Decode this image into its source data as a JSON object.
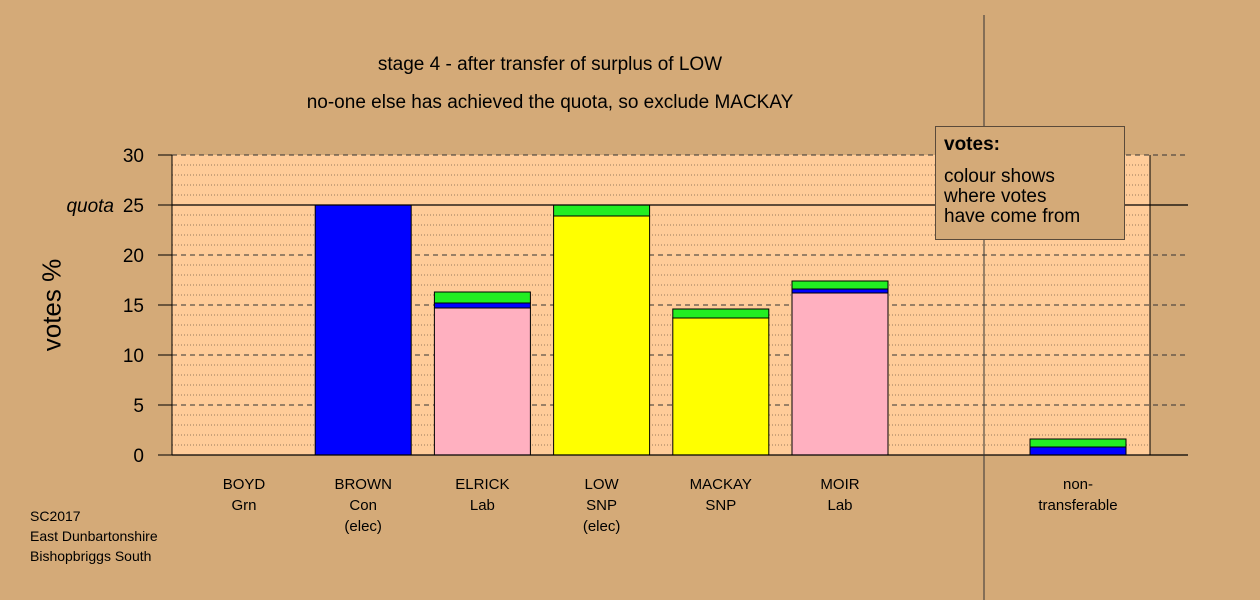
{
  "title_lines": [
    "stage 4 - after transfer of surplus of LOW",
    "no-one else has achieved the quota, so exclude MACKAY"
  ],
  "legend": {
    "title": "votes:",
    "lines": [
      "colour shows",
      "where votes",
      "have come from"
    ]
  },
  "footer": [
    "SC2017",
    "East Dunbartonshire",
    "Bishopbriggs South"
  ],
  "chart_data": {
    "type": "bar",
    "stacked": true,
    "ylabel": "votes %",
    "ylim": [
      0,
      30
    ],
    "yticks": [
      0,
      5,
      10,
      15,
      20,
      25,
      30
    ],
    "quota": {
      "label": "quota",
      "value": 25
    },
    "grid": true,
    "colors": {
      "blue": "#0000ff",
      "pink": "#ffb0c0",
      "yellow": "#ffff00",
      "green": "#22ee22",
      "plot_bg": "#ffcc99"
    },
    "categories": [
      {
        "lines": [
          "BOYD",
          "Grn"
        ],
        "segments": []
      },
      {
        "lines": [
          "BROWN",
          "Con",
          "(elec)"
        ],
        "segments": [
          {
            "color": "blue",
            "value": 25.0
          }
        ]
      },
      {
        "lines": [
          "ELRICK",
          "Lab"
        ],
        "segments": [
          {
            "color": "pink",
            "value": 14.7
          },
          {
            "color": "blue",
            "value": 0.5
          },
          {
            "color": "green",
            "value": 1.1
          }
        ]
      },
      {
        "lines": [
          "LOW",
          "SNP",
          "(elec)"
        ],
        "segments": [
          {
            "color": "yellow",
            "value": 23.9
          },
          {
            "color": "green",
            "value": 1.1
          }
        ]
      },
      {
        "lines": [
          "MACKAY",
          "SNP"
        ],
        "segments": [
          {
            "color": "yellow",
            "value": 13.7
          },
          {
            "color": "green",
            "value": 0.9
          }
        ]
      },
      {
        "lines": [
          "MOIR",
          "Lab"
        ],
        "segments": [
          {
            "color": "pink",
            "value": 16.2
          },
          {
            "color": "blue",
            "value": 0.4
          },
          {
            "color": "green",
            "value": 0.8
          }
        ]
      }
    ],
    "nontransferable": {
      "lines": [
        "non-",
        "transferable"
      ],
      "segments": [
        {
          "color": "blue",
          "value": 0.8
        },
        {
          "color": "green",
          "value": 0.8
        }
      ]
    }
  }
}
